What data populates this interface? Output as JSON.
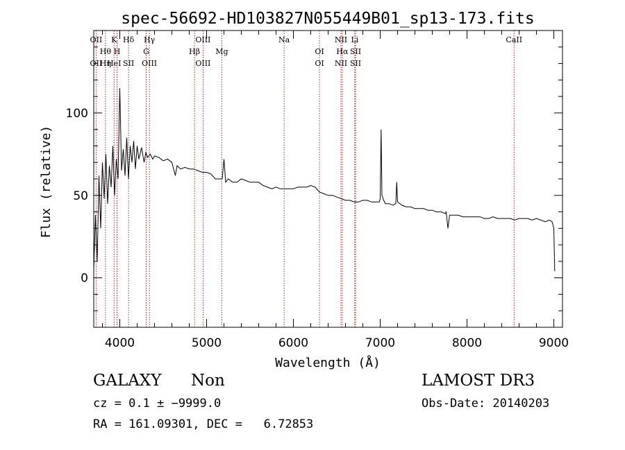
{
  "chart_data": {
    "type": "line",
    "title": "spec-56692-HD103827N055449B01_sp13-173.fits",
    "xlabel": "Wavelength (Å)",
    "ylabel": "Flux (relative)",
    "xlim": [
      3700,
      9100
    ],
    "ylim": [
      -30,
      150
    ],
    "xticks": [
      4000,
      5000,
      6000,
      7000,
      8000,
      9000
    ],
    "yticks": [
      0,
      50,
      100
    ],
    "series": [
      {
        "x": [
          3700,
          3720,
          3740,
          3760,
          3780,
          3800,
          3820,
          3840,
          3860,
          3880,
          3900,
          3920,
          3940,
          3960,
          3980,
          4000,
          4020,
          4040,
          4060,
          4080,
          4100,
          4120,
          4140,
          4160,
          4180,
          4200,
          4220,
          4250,
          4280,
          4300,
          4320,
          4350,
          4380,
          4400,
          4450,
          4500,
          4550,
          4600,
          4640,
          4660,
          4700,
          4750,
          4800,
          4850,
          4900,
          4950,
          5000,
          5050,
          5100,
          5150,
          5180,
          5200,
          5220,
          5250,
          5300,
          5350,
          5400,
          5450,
          5500,
          5550,
          5600,
          5650,
          5700,
          5750,
          5800,
          5850,
          5900,
          5950,
          6000,
          6050,
          6100,
          6150,
          6200,
          6250,
          6300,
          6350,
          6400,
          6450,
          6500,
          6550,
          6600,
          6650,
          6700,
          6750,
          6800,
          6850,
          6900,
          6950,
          6990,
          7000,
          7010,
          7020,
          7040,
          7060,
          7100,
          7150,
          7180,
          7190,
          7200,
          7250,
          7300,
          7350,
          7400,
          7450,
          7500,
          7550,
          7600,
          7650,
          7700,
          7750,
          7760,
          7780,
          7800,
          7850,
          7900,
          7950,
          8000,
          8050,
          8100,
          8150,
          8200,
          8250,
          8300,
          8350,
          8400,
          8450,
          8500,
          8550,
          8600,
          8650,
          8700,
          8750,
          8800,
          8850,
          8900,
          8950,
          8980,
          9000,
          9010
        ],
        "values": [
          5,
          38,
          10,
          62,
          30,
          70,
          48,
          75,
          45,
          68,
          55,
          80,
          50,
          72,
          60,
          115,
          65,
          78,
          62,
          85,
          60,
          80,
          70,
          83,
          66,
          80,
          72,
          79,
          70,
          76,
          73,
          75,
          72,
          74,
          73,
          71,
          72,
          70,
          62,
          68,
          66,
          67,
          66,
          66,
          65,
          64,
          64,
          63,
          60,
          60,
          60,
          72,
          58,
          60,
          58,
          58,
          60,
          59,
          58,
          58,
          58,
          56,
          55,
          54,
          55,
          54,
          54,
          54,
          54,
          55,
          55,
          55,
          56,
          55,
          52,
          51,
          50,
          50,
          49,
          48,
          47,
          47,
          46,
          46,
          47,
          47,
          46,
          46,
          46,
          48,
          90,
          50,
          47,
          45,
          45,
          44,
          45,
          58,
          46,
          44,
          43,
          43,
          42,
          42,
          42,
          41,
          41,
          40,
          40,
          39,
          40,
          30,
          38,
          38,
          38,
          37,
          37,
          37,
          37,
          37,
          36,
          36,
          37,
          36,
          36,
          36,
          36,
          35,
          36,
          36,
          36,
          35,
          36,
          35,
          34,
          35,
          34,
          30,
          4
        ]
      }
    ],
    "grid": false,
    "lines": [
      {
        "wavelength": 3727,
        "labels": [
          "OII",
          "OII"
        ]
      },
      {
        "wavelength": 3835,
        "labels": [
          "Hθ",
          "Hη"
        ]
      },
      {
        "wavelength": 3934,
        "labels": [
          "K",
          "HeI"
        ]
      },
      {
        "wavelength": 3968,
        "labels": [
          "H"
        ]
      },
      {
        "wavelength": 4101,
        "labels": [
          "Hδ",
          "SII"
        ]
      },
      {
        "wavelength": 4304,
        "labels": [
          "G"
        ]
      },
      {
        "wavelength": 4341,
        "labels": [
          "Hγ",
          "OIII"
        ]
      },
      {
        "wavelength": 4861,
        "labels": [
          "Hβ"
        ]
      },
      {
        "wavelength": 4959,
        "labels": [
          "OIII",
          "OIII"
        ]
      },
      {
        "wavelength": 5175,
        "labels": [
          "Mg"
        ]
      },
      {
        "wavelength": 5893,
        "labels": [
          "Na"
        ]
      },
      {
        "wavelength": 6300,
        "labels": [
          "OI",
          "OI"
        ]
      },
      {
        "wavelength": 6548,
        "labels": [
          "NII",
          "NII"
        ]
      },
      {
        "wavelength": 6563,
        "labels": [
          "Hα"
        ]
      },
      {
        "wavelength": 6707,
        "labels": [
          "Li"
        ]
      },
      {
        "wavelength": 6716,
        "labels": [
          "SII",
          "SII"
        ]
      },
      {
        "wavelength": 8542,
        "labels": [
          "CaII"
        ]
      }
    ],
    "line_color": "#000000",
    "marker_color": "#b22222"
  },
  "info": {
    "class": "GALAXY",
    "subclass": "Non",
    "cz": "cz = 0.1 ± −9999.0",
    "radec": "RA = 161.09301, DEC =   6.72853",
    "survey": "LAMOST DR3",
    "obsdate": "Obs-Date: 20140203"
  }
}
